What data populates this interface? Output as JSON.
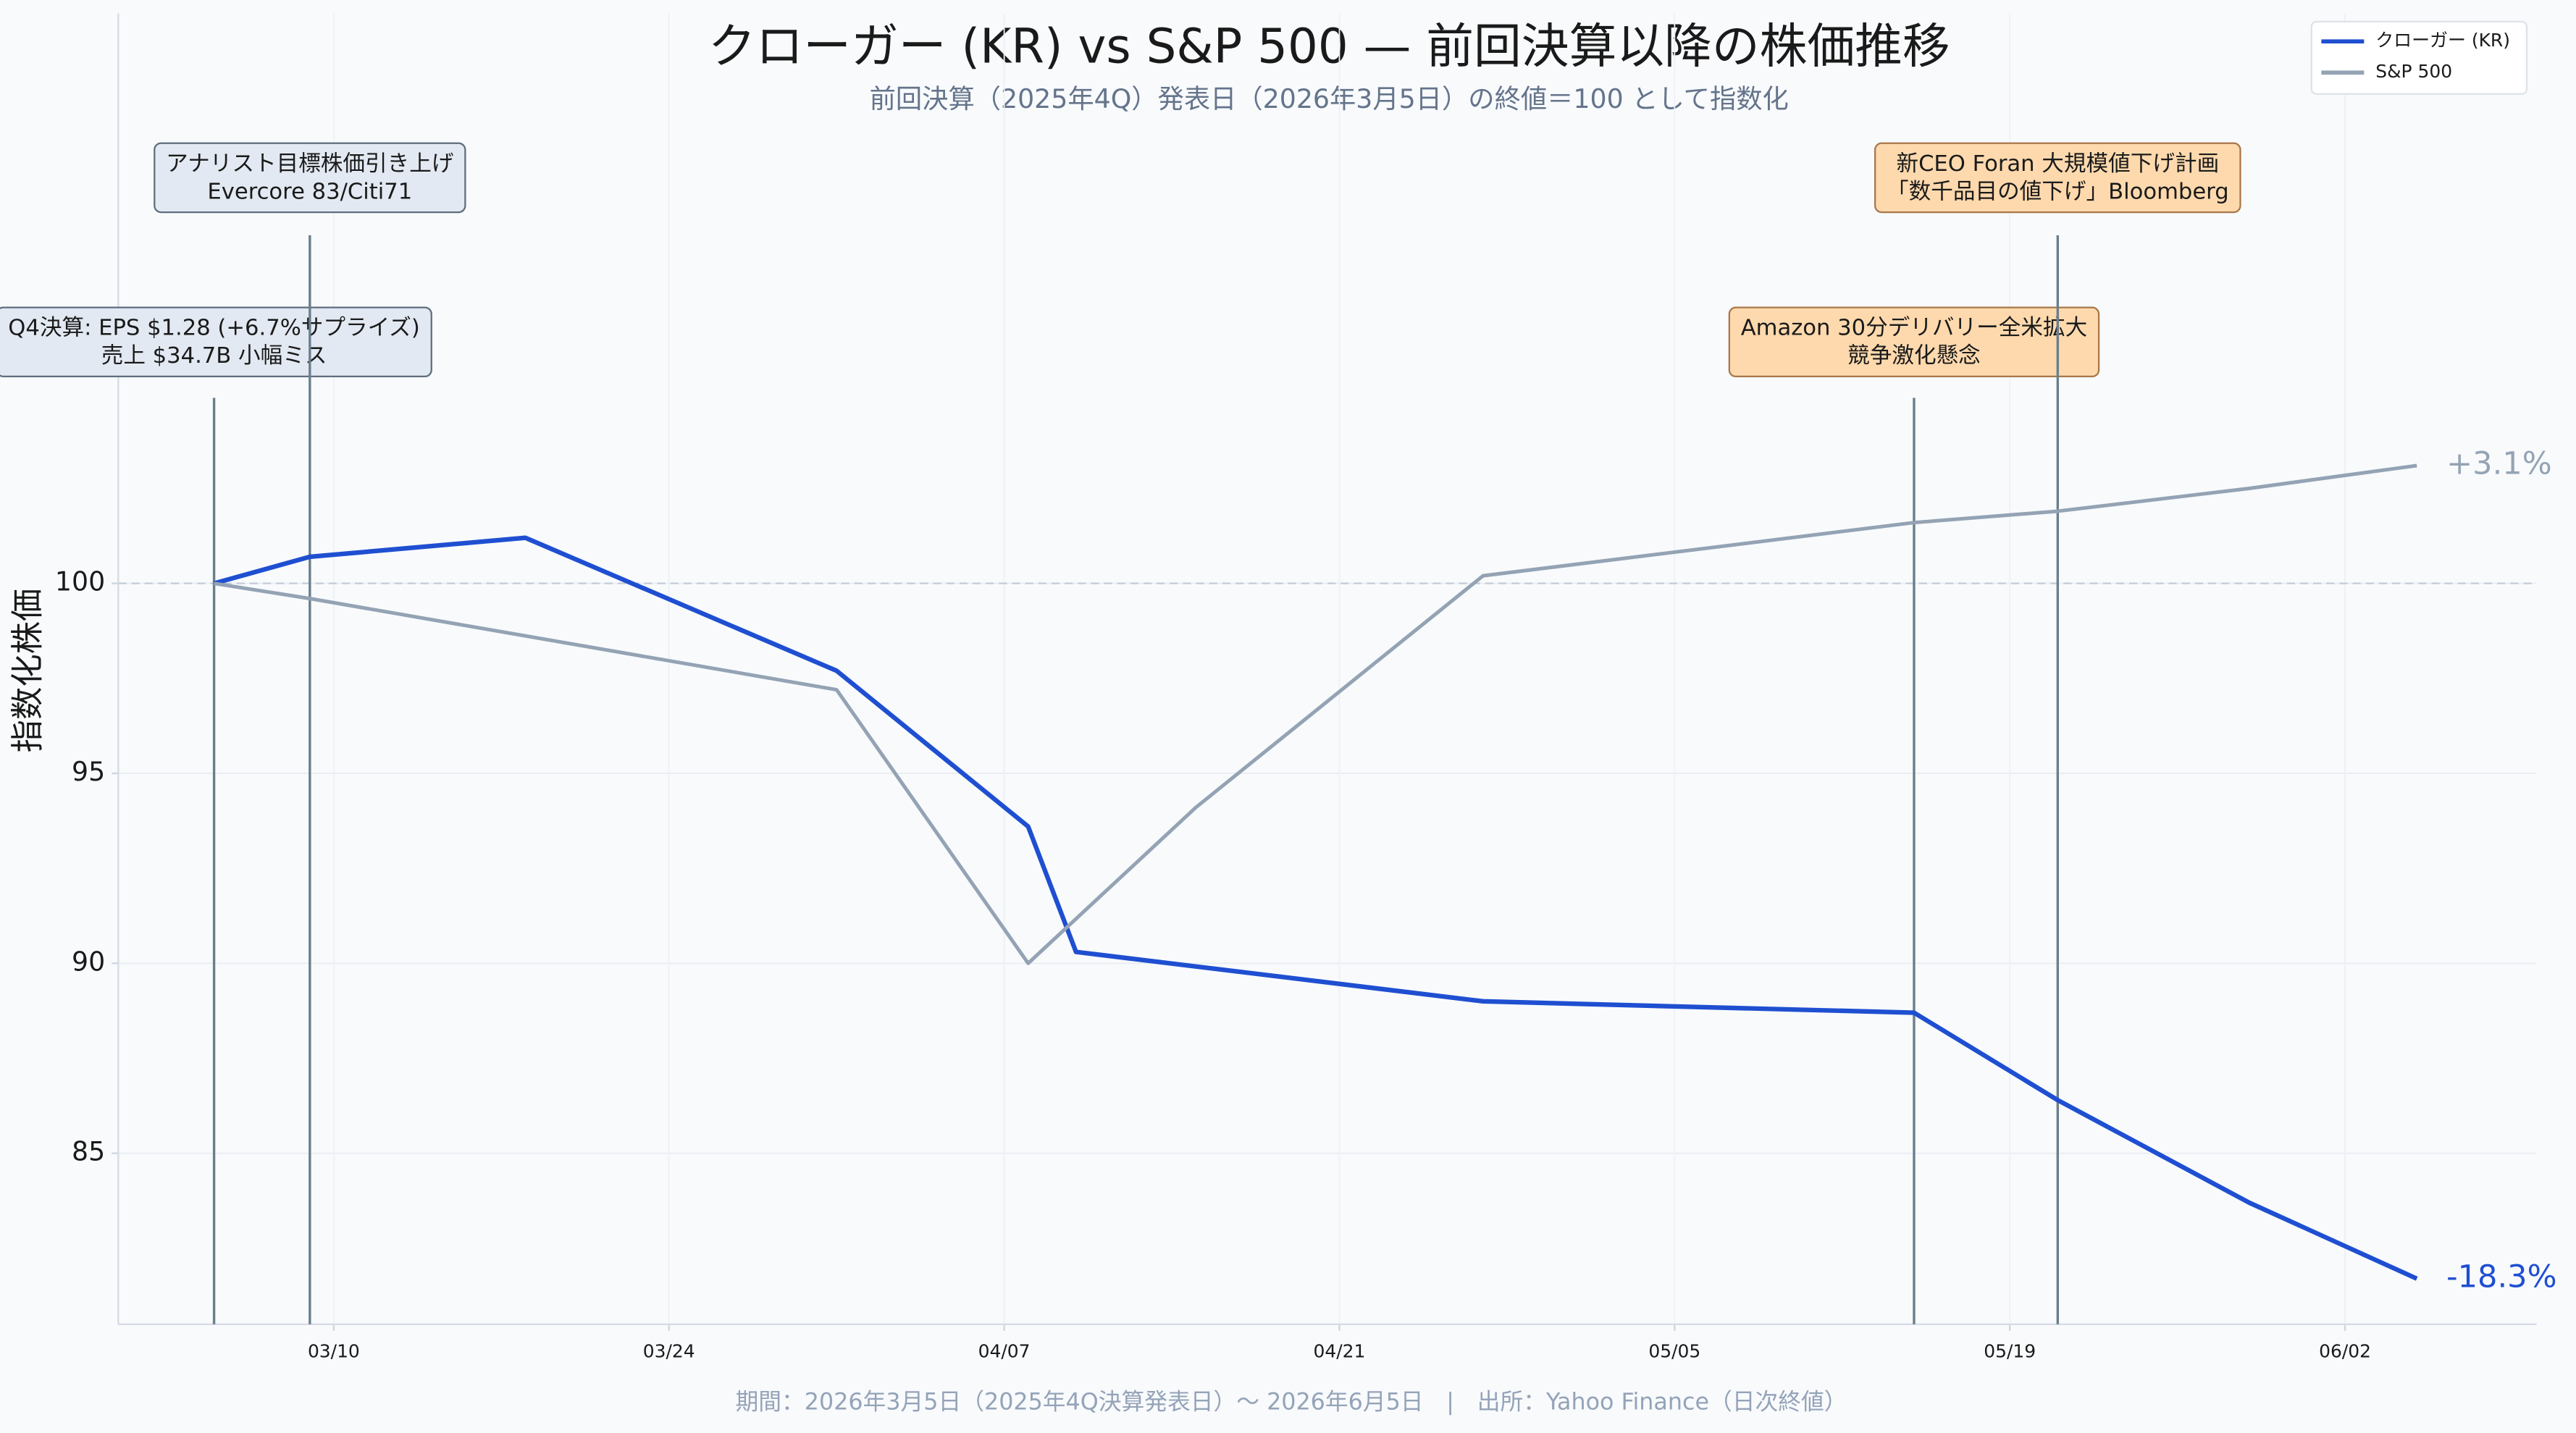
{
  "chart_data": {
    "type": "line",
    "title": "クローガー (KR) vs S&P 500 — 前回決算以降の株価推移",
    "subtitle": "前回決算（2025年4Q）発表日（2026年3月5日）の終値＝100 として指数化",
    "footer": "期間：2026年3月5日（2025年4Q決算発表日）〜 2026年6月5日　|　出所：Yahoo Finance（日次終値）",
    "y_label": "指数化株価",
    "xlim": [
      "03/01",
      "06/10"
    ],
    "xticks": [
      "03/10",
      "03/24",
      "04/07",
      "04/21",
      "05/05",
      "05/19",
      "06/02"
    ],
    "ylim": [
      80.5,
      115
    ],
    "yticks": [
      85,
      90,
      95,
      100
    ],
    "baseline": 100,
    "grid": true,
    "legend": "upper right",
    "series": [
      {
        "name": "クローガー (KR)",
        "color": "#1f4fd1",
        "end_label": "-18.3%",
        "x": [
          "03/05",
          "03/09",
          "03/18",
          "03/31",
          "04/08",
          "04/10",
          "04/27",
          "05/15",
          "05/21",
          "05/29",
          "06/05"
        ],
        "values": [
          100,
          100.7,
          101.2,
          97.7,
          93.6,
          90.3,
          89.0,
          88.7,
          86.4,
          83.7,
          81.7
        ]
      },
      {
        "name": "S&P 500",
        "color": "#94a3b4",
        "end_label": "+3.1%",
        "x": [
          "03/05",
          "03/09",
          "03/31",
          "04/08",
          "04/15",
          "04/27",
          "05/15",
          "05/21",
          "05/29",
          "06/05"
        ],
        "values": [
          100,
          99.6,
          97.2,
          90.0,
          94.1,
          100.2,
          101.6,
          101.9,
          102.5,
          103.1
        ]
      }
    ],
    "annotations": [
      {
        "x": "03/05",
        "lines": [
          "Q4決算: EPS $1.28 (+6.7%サプライズ)",
          "売上 $34.7B 小幅ミス"
        ],
        "color": "#e3e9f2",
        "border": "#5e6e7e"
      },
      {
        "x": "03/09",
        "lines": [
          "アナリスト目標株価引き上げ",
          "Evercore 83/Citi71"
        ],
        "color": "#e3e9f2",
        "border": "#5e6e7e"
      },
      {
        "x": "05/15",
        "lines": [
          "Amazon 30分デリバリー全米拡大",
          "競争激化懸念"
        ],
        "color": "#fdd9ad",
        "border": "#a9774a"
      },
      {
        "x": "05/21",
        "lines": [
          "新CEO Foran 大規模値下げ計画",
          "「数千品目の値下げ」Bloomberg"
        ],
        "color": "#fdd9ad",
        "border": "#a9774a"
      }
    ]
  }
}
